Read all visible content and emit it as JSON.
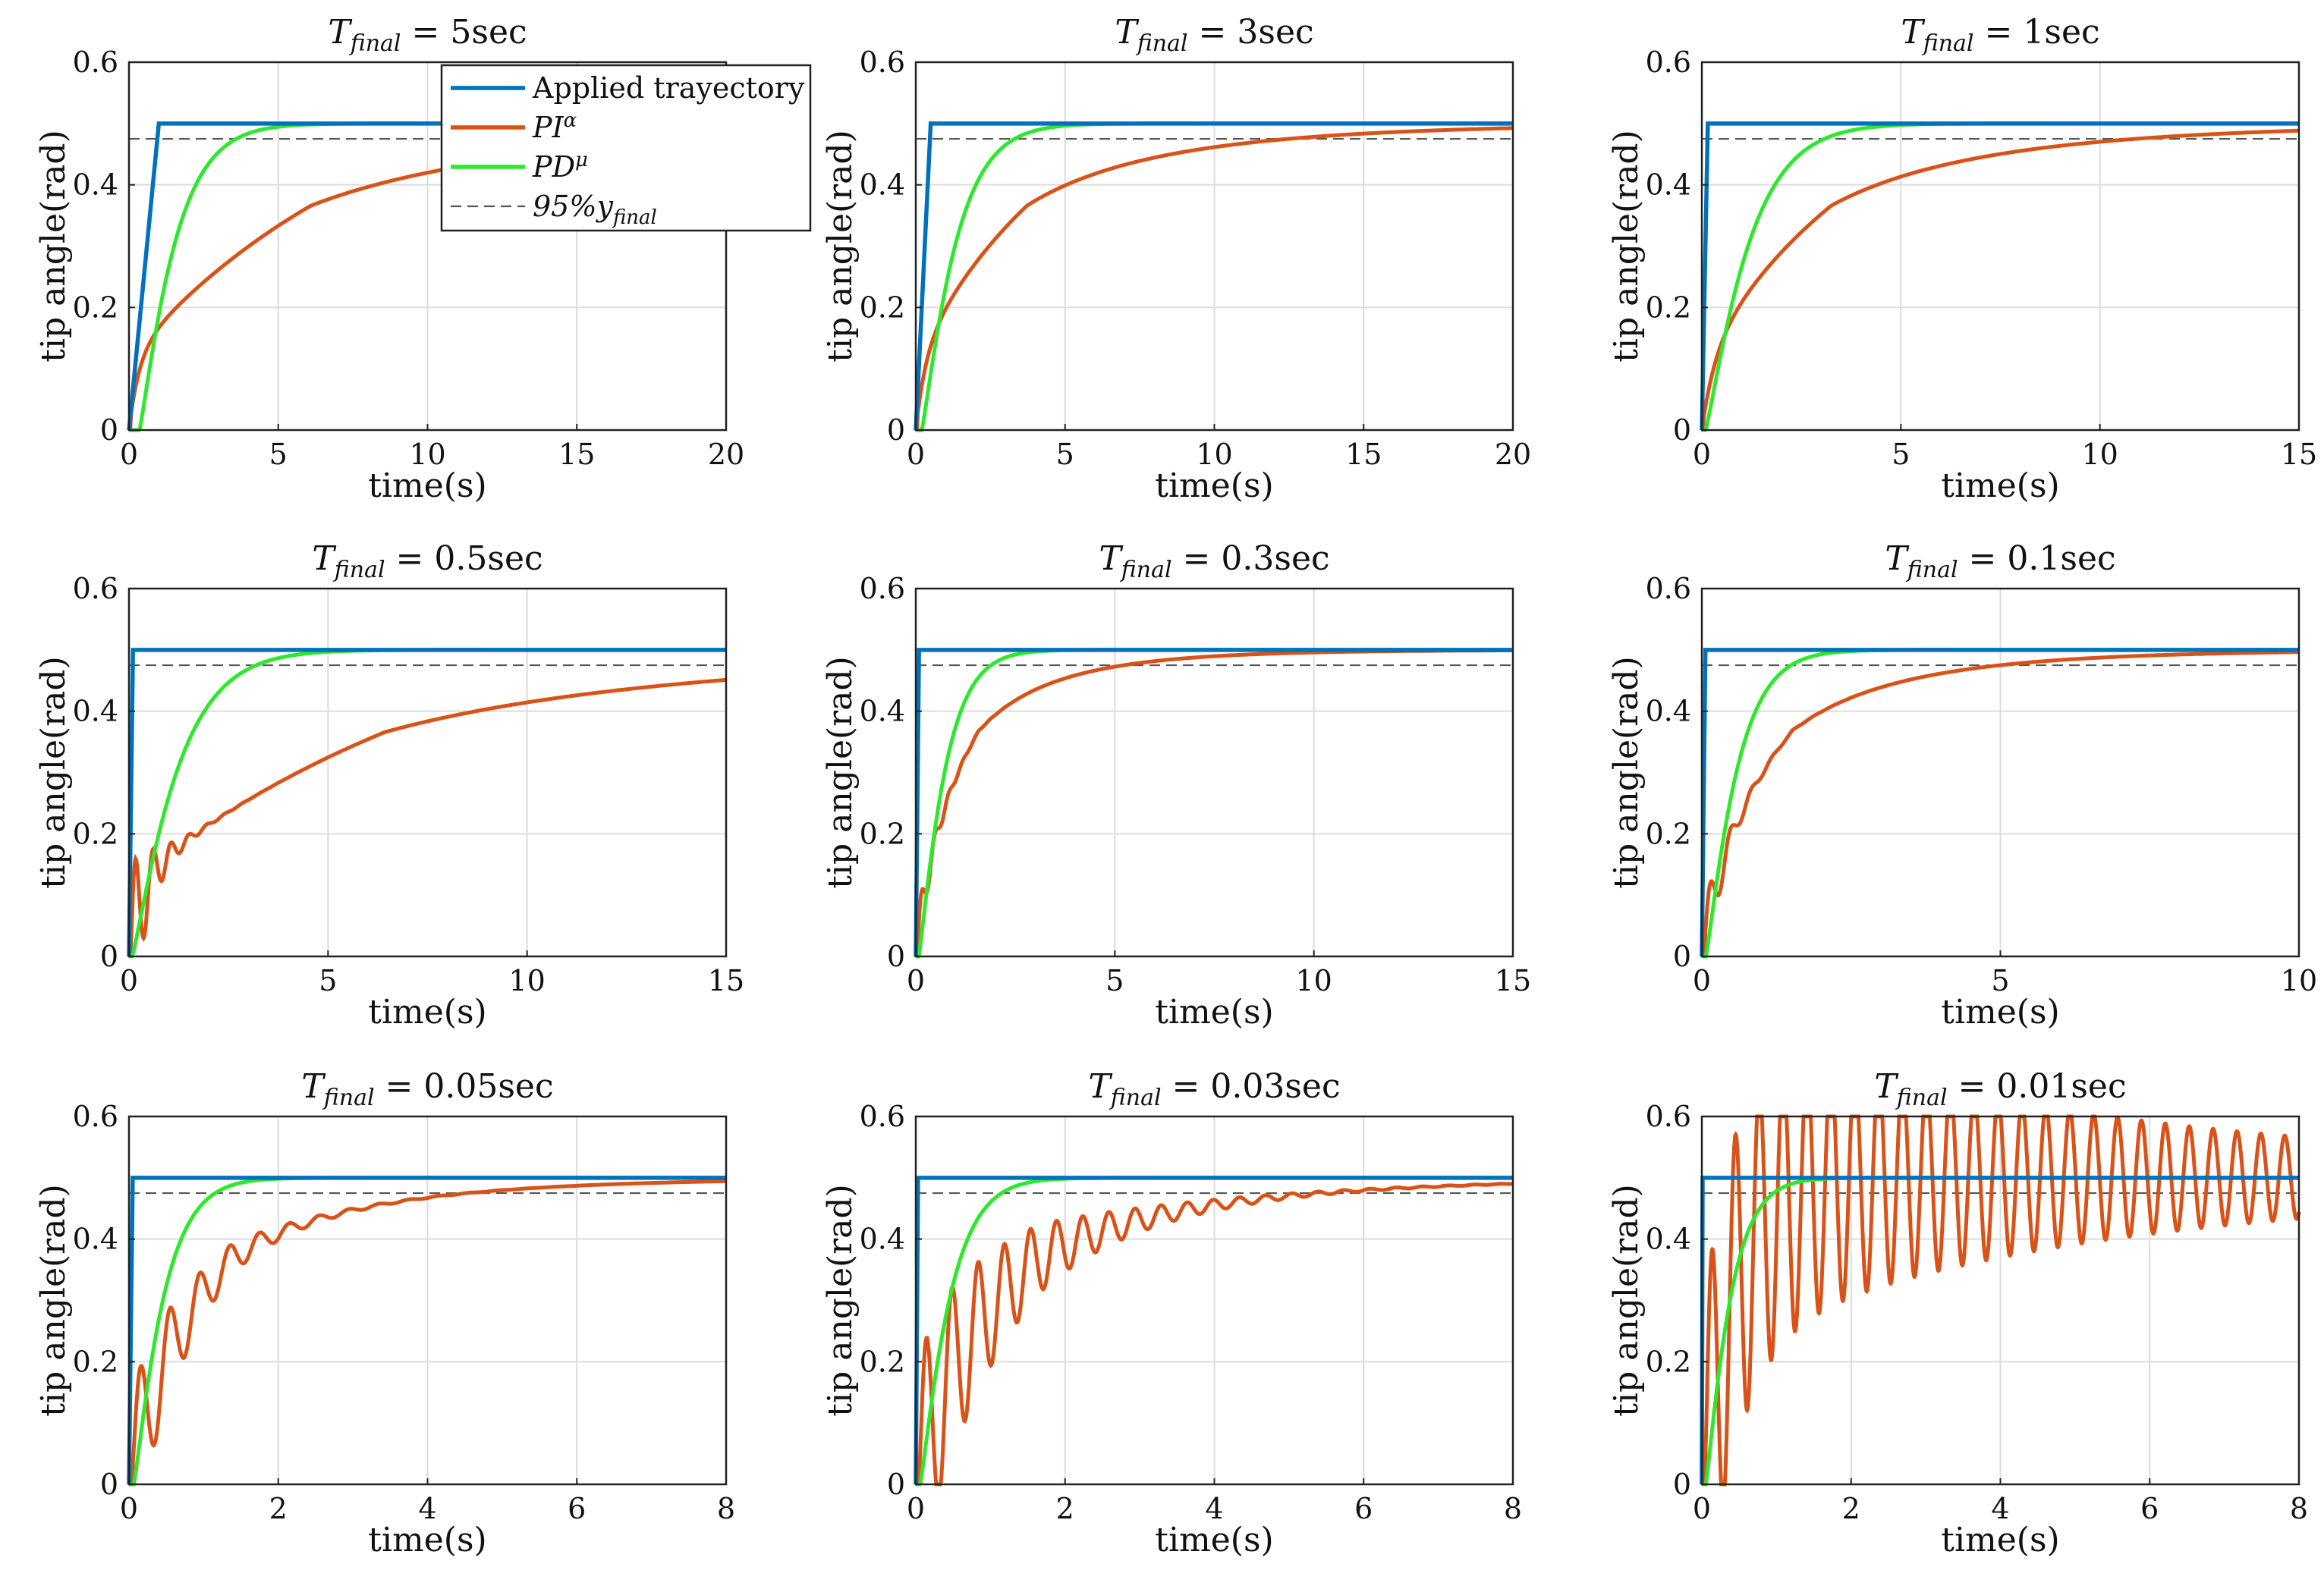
{
  "figure": {
    "legend": {
      "entries": [
        {
          "label": "Applied trayectory",
          "series": "applied"
        },
        {
          "label": "PI",
          "sup": "α",
          "series": "pi"
        },
        {
          "label": "PD",
          "sup": "μ",
          "series": "pd"
        },
        {
          "label": "95%y",
          "sub": "final",
          "series": "ref95"
        }
      ]
    }
  },
  "chart_data": [
    {
      "type": "line",
      "title_main": "T",
      "title_sub": "final",
      "title_rest": "= 5sec",
      "xlabel": "time(s)",
      "ylabel": "tip angle(rad)",
      "xlim": [
        0,
        20
      ],
      "ylim": [
        0,
        0.6
      ],
      "xticks": [
        0,
        5,
        10,
        15,
        20
      ],
      "yticks": [
        0,
        0.2,
        0.4,
        0.6
      ],
      "grid": true,
      "series": [
        {
          "name": "Applied trayectory",
          "ramp_end": 1.0
        },
        {
          "name": "PI^α",
          "tau": 9.0,
          "osc": 0
        },
        {
          "name": "PD^μ",
          "tau": 1.25
        },
        {
          "name": "95%y_final",
          "value": 0.475
        }
      ],
      "final_value": 0.5
    },
    {
      "type": "line",
      "title_main": "T",
      "title_sub": "final",
      "title_rest": "= 3sec",
      "xlabel": "time(s)",
      "ylabel": "tip angle(rad)",
      "xlim": [
        0,
        20
      ],
      "ylim": [
        0,
        0.6
      ],
      "xticks": [
        0,
        5,
        10,
        15,
        20
      ],
      "yticks": [
        0,
        0.2,
        0.4,
        0.6
      ],
      "grid": true,
      "series": [
        {
          "name": "Applied trayectory",
          "ramp_end": 0.5
        },
        {
          "name": "PI^α",
          "tau": 5.5,
          "osc": 0
        },
        {
          "name": "PD^μ",
          "tau": 1.2
        },
        {
          "name": "95%y_final",
          "value": 0.475
        }
      ],
      "final_value": 0.5
    },
    {
      "type": "line",
      "title_main": "T",
      "title_sub": "final",
      "title_rest": "= 1sec",
      "xlabel": "time(s)",
      "ylabel": "tip angle(rad)",
      "xlim": [
        0,
        15
      ],
      "ylim": [
        0,
        0.6
      ],
      "xticks": [
        0,
        5,
        10,
        15
      ],
      "yticks": [
        0,
        0.2,
        0.4,
        0.6
      ],
      "grid": true,
      "series": [
        {
          "name": "Applied trayectory",
          "ramp_end": 0.15
        },
        {
          "name": "PI^α",
          "tau": 4.8,
          "osc": 0
        },
        {
          "name": "PD^μ",
          "tau": 1.15
        },
        {
          "name": "95%y_final",
          "value": 0.475
        }
      ],
      "final_value": 0.5
    },
    {
      "type": "line",
      "title_main": "T",
      "title_sub": "final",
      "title_rest": "= 0.5sec",
      "xlabel": "time(s)",
      "ylabel": "tip angle(rad)",
      "xlim": [
        0,
        15
      ],
      "ylim": [
        0,
        0.6
      ],
      "xticks": [
        0,
        5,
        10,
        15
      ],
      "yticks": [
        0,
        0.2,
        0.4,
        0.6
      ],
      "grid": true,
      "series": [
        {
          "name": "Applied trayectory",
          "ramp_end": 0.1
        },
        {
          "name": "PI^α",
          "tau": 9.5,
          "osc": 0.3,
          "osc_period": 0.45,
          "osc_decay": 0.5
        },
        {
          "name": "PD^μ",
          "tau": 1.2
        },
        {
          "name": "95%y_final",
          "value": 0.475
        }
      ],
      "final_value": 0.5
    },
    {
      "type": "line",
      "title_main": "T",
      "title_sub": "final",
      "title_rest": "= 0.3sec",
      "xlabel": "time(s)",
      "ylabel": "tip angle(rad)",
      "xlim": [
        0,
        15
      ],
      "ylim": [
        0,
        0.6
      ],
      "xticks": [
        0,
        5,
        10,
        15
      ],
      "yticks": [
        0,
        0.2,
        0.4,
        0.6
      ],
      "grid": true,
      "series": [
        {
          "name": "Applied trayectory",
          "ramp_end": 0.08
        },
        {
          "name": "PI^α",
          "tau": 2.3,
          "osc": 0.1,
          "osc_period": 0.35,
          "osc_decay": 0.4
        },
        {
          "name": "PD^μ",
          "tau": 0.7
        },
        {
          "name": "95%y_final",
          "value": 0.475
        }
      ],
      "final_value": 0.5
    },
    {
      "type": "line",
      "title_main": "T",
      "title_sub": "final",
      "title_rest": "= 0.1sec",
      "xlabel": "time(s)",
      "ylabel": "tip angle(rad)",
      "xlim": [
        0,
        10
      ],
      "ylim": [
        0,
        0.6
      ],
      "xticks": [
        0,
        5,
        10
      ],
      "yticks": [
        0,
        0.2,
        0.4,
        0.6
      ],
      "grid": true,
      "series": [
        {
          "name": "Applied trayectory",
          "ramp_end": 0.06
        },
        {
          "name": "PI^α",
          "tau": 2.2,
          "osc": 0.15,
          "osc_period": 0.35,
          "osc_decay": 0.35
        },
        {
          "name": "PD^μ",
          "tau": 0.55
        },
        {
          "name": "95%y_final",
          "value": 0.475
        }
      ],
      "final_value": 0.5
    },
    {
      "type": "line",
      "title_main": "T",
      "title_sub": "final",
      "title_rest": "= 0.05sec",
      "xlabel": "time(s)",
      "ylabel": "tip angle(rad)",
      "xlim": [
        0,
        8
      ],
      "ylim": [
        0,
        0.6
      ],
      "xticks": [
        0,
        2,
        4,
        6,
        8
      ],
      "yticks": [
        0,
        0.2,
        0.4,
        0.6
      ],
      "grid": true,
      "series": [
        {
          "name": "Applied trayectory",
          "ramp_end": 0.05
        },
        {
          "name": "PI^α",
          "tau": 2.0,
          "osc": 0.28,
          "osc_period": 0.4,
          "osc_decay": 0.8
        },
        {
          "name": "PD^μ",
          "tau": 0.42
        },
        {
          "name": "95%y_final",
          "value": 0.475
        }
      ],
      "final_value": 0.5
    },
    {
      "type": "line",
      "title_main": "T",
      "title_sub": "final",
      "title_rest": "= 0.03sec",
      "xlabel": "time(s)",
      "ylabel": "tip angle(rad)",
      "xlim": [
        0,
        8
      ],
      "ylim": [
        0,
        0.6
      ],
      "xticks": [
        0,
        2,
        4,
        6,
        8
      ],
      "yticks": [
        0,
        0.2,
        0.4,
        0.6
      ],
      "grid": true,
      "series": [
        {
          "name": "Applied trayectory",
          "ramp_end": 0.03
        },
        {
          "name": "PI^α",
          "tau": 2.4,
          "osc": 0.4,
          "osc_period": 0.35,
          "osc_decay": 1.3
        },
        {
          "name": "PD^μ",
          "tau": 0.42
        },
        {
          "name": "95%y_final",
          "value": 0.475
        }
      ],
      "final_value": 0.5
    },
    {
      "type": "line",
      "title_main": "T",
      "title_sub": "final",
      "title_rest": "= 0.01sec",
      "xlabel": "time(s)",
      "ylabel": "tip angle(rad)",
      "xlim": [
        0,
        8
      ],
      "ylim": [
        0,
        0.6
      ],
      "xticks": [
        0,
        2,
        4,
        6,
        8
      ],
      "yticks": [
        0,
        0.2,
        0.4,
        0.6
      ],
      "grid": true,
      "series": [
        {
          "name": "Applied trayectory",
          "ramp_end": 0.01
        },
        {
          "name": "PI^α",
          "tau": 0.0,
          "osc": 0.5,
          "osc_period": 0.32,
          "osc_decay": 4.5
        },
        {
          "name": "PD^μ",
          "tau": 0.35
        },
        {
          "name": "95%y_final",
          "value": 0.475
        }
      ],
      "final_value": 0.5
    }
  ],
  "colors": {
    "applied": "#0072bd",
    "pi": "#d95319",
    "pd": "#2ee82e",
    "ref95": "#555555",
    "grid": "#dcdcdc",
    "axis": "#222222"
  }
}
